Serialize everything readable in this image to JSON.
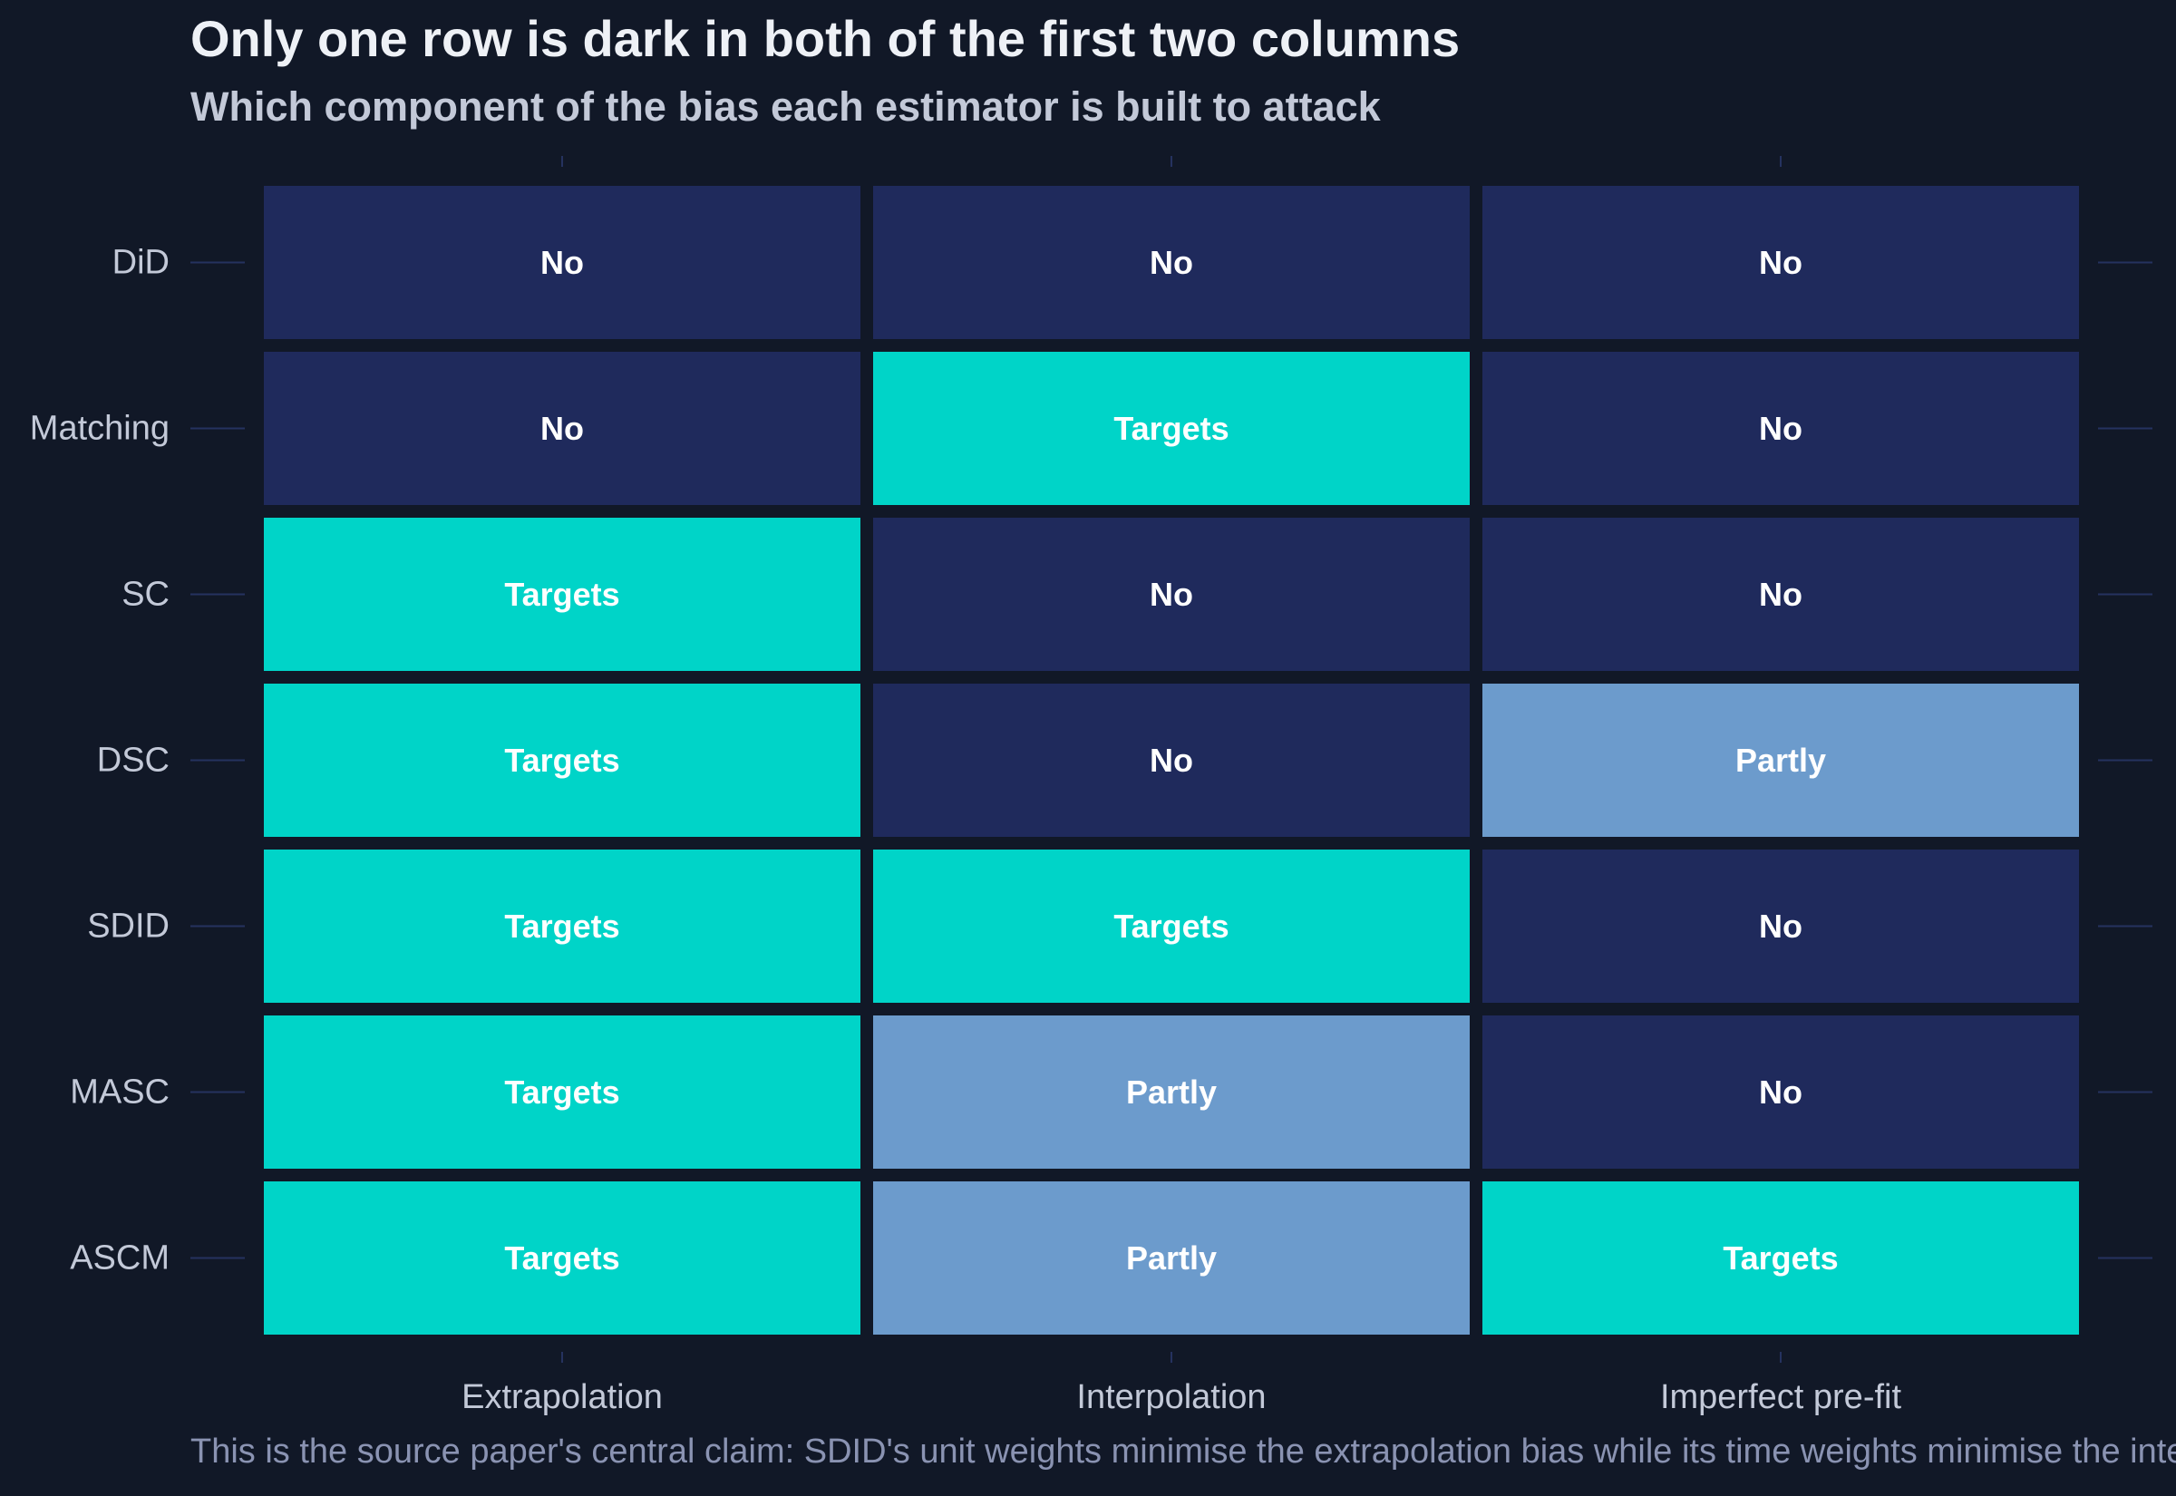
{
  "title": "Only one row is dark in both of the first two columns",
  "subtitle": "Which component of the bias each estimator is built to attack",
  "caption": "This is the source paper's central claim: SDID's unit weights minimise the extrapolation bias while its time weights minimise the interpolation bias.",
  "colors": {
    "background": "#111827",
    "No": "#1f2a5c",
    "Targets": "#00d4c8",
    "Partly": "#6c9bcc",
    "cell_text": "#ffffff",
    "tick_label": "#c3c9d8",
    "tick_line": "#25325f"
  },
  "chart_data": {
    "type": "heatmap",
    "title": "Only one row is dark in both of the first two columns",
    "subtitle": "Which component of the bias each estimator is built to attack",
    "xlabel": "",
    "ylabel": "",
    "columns": [
      "Extrapolation",
      "Interpolation",
      "Imperfect pre-fit"
    ],
    "rows": [
      "DiD",
      "Matching",
      "SC",
      "DSC",
      "SDID",
      "MASC",
      "ASCM"
    ],
    "levels": [
      "No",
      "Partly",
      "Targets"
    ],
    "values": [
      [
        "No",
        "No",
        "No"
      ],
      [
        "No",
        "Targets",
        "No"
      ],
      [
        "Targets",
        "No",
        "No"
      ],
      [
        "Targets",
        "No",
        "Partly"
      ],
      [
        "Targets",
        "Targets",
        "No"
      ],
      [
        "Targets",
        "Partly",
        "No"
      ],
      [
        "Targets",
        "Partly",
        "Targets"
      ]
    ],
    "grid": false,
    "legend": "none"
  }
}
